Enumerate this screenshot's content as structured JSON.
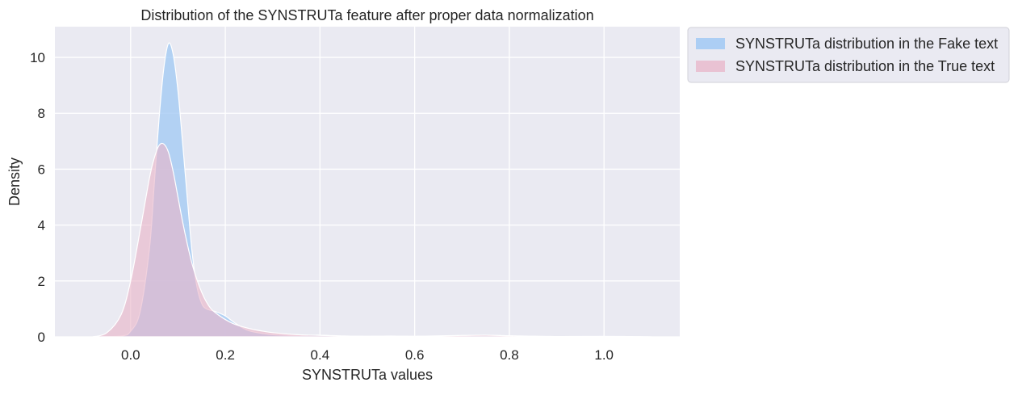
{
  "chart_data": {
    "type": "area",
    "title": "Distribution of the SYNSTRUTa feature after proper data normalization",
    "xlabel": "SYNSTRUTa values",
    "ylabel": "Density",
    "xlim": [
      -0.16,
      1.16
    ],
    "ylim": [
      0,
      11.1
    ],
    "xticks": [
      0.0,
      0.2,
      0.4,
      0.6,
      0.8,
      1.0
    ],
    "xtick_labels": [
      "0.0",
      "0.2",
      "0.4",
      "0.6",
      "0.8",
      "1.0"
    ],
    "yticks": [
      0,
      2,
      4,
      6,
      8,
      10
    ],
    "ytick_labels": [
      "0",
      "2",
      "4",
      "6",
      "8",
      "10"
    ],
    "grid": true,
    "legend_position": "outside-top-right",
    "colors": {
      "fake": "#a1c9f4",
      "true": "#e8b4c8",
      "background": "#eaeaf2",
      "grid": "#ffffff"
    },
    "series": [
      {
        "name": "SYNSTRUTa distribution in the Fake text",
        "x": [
          -0.08,
          -0.02,
          0.0,
          0.02,
          0.04,
          0.05,
          0.06,
          0.07,
          0.08,
          0.09,
          0.1,
          0.11,
          0.12,
          0.13,
          0.14,
          0.15,
          0.16,
          0.18,
          0.2,
          0.22,
          0.25,
          0.3,
          0.35,
          0.4,
          0.45,
          0.5,
          0.55,
          0.6,
          0.7,
          0.75,
          0.8,
          0.9,
          1.0,
          1.1
        ],
        "y": [
          0,
          0.03,
          0.2,
          0.9,
          3.2,
          5.5,
          7.8,
          9.6,
          10.5,
          10.1,
          8.8,
          6.9,
          4.9,
          3.0,
          1.8,
          1.2,
          1.0,
          0.9,
          0.75,
          0.5,
          0.22,
          0.08,
          0.05,
          0.06,
          0.03,
          0.02,
          0.03,
          0.02,
          0.04,
          0.05,
          0.03,
          0.01,
          0.02,
          0.0
        ]
      },
      {
        "name": "SYNSTRUTa distribution in the True text",
        "x": [
          -0.08,
          -0.05,
          -0.02,
          0.0,
          0.02,
          0.04,
          0.05,
          0.06,
          0.07,
          0.08,
          0.09,
          0.1,
          0.11,
          0.12,
          0.13,
          0.14,
          0.15,
          0.16,
          0.17,
          0.18,
          0.2,
          0.22,
          0.25,
          0.28,
          0.3,
          0.35,
          0.4,
          0.45,
          0.5,
          0.6,
          0.7,
          0.75,
          0.8,
          0.9,
          1.0,
          1.1
        ],
        "y": [
          0,
          0.15,
          0.8,
          2.0,
          3.8,
          5.7,
          6.4,
          6.85,
          6.9,
          6.6,
          5.9,
          5.0,
          4.1,
          3.3,
          2.6,
          2.05,
          1.6,
          1.25,
          1.0,
          0.85,
          0.62,
          0.45,
          0.3,
          0.2,
          0.15,
          0.08,
          0.05,
          0.03,
          0.02,
          0.02,
          0.05,
          0.06,
          0.04,
          0.01,
          0.01,
          0.0
        ]
      }
    ]
  }
}
